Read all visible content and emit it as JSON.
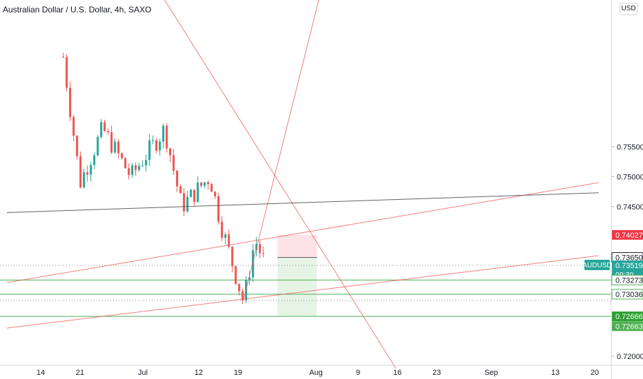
{
  "symbol_title": "Australian Dollar / U.S. Dollar, 4h, SAXO",
  "currency_button": "USD",
  "colors": {
    "up": "#26a69a",
    "down": "#ef5350",
    "trend_red": "#ef5350",
    "support_green": "#4caf50",
    "dark_line": "#505050",
    "axis_text": "#131722"
  },
  "chart_data": {
    "type": "candlestick",
    "title": "Australian Dollar / U.S. Dollar, 4h, SAXO",
    "symbol": "AUDUSD",
    "ylim": [
      0.7185,
      0.7795
    ],
    "y_ticks": [
      "0.75500",
      "0.75000",
      "0.74500",
      "0.72000"
    ],
    "x_ticks": [
      "14",
      "21",
      "Jul",
      "12",
      "19",
      "Aug",
      "9",
      "16",
      "23",
      "Sep",
      "13",
      "20"
    ],
    "price_labels": [
      {
        "label": "0.74027",
        "value": 0.74027,
        "style": "red"
      },
      {
        "label": "0.73650",
        "value": 0.7365,
        "style": "dark"
      },
      {
        "label": "AUDUSD",
        "value": 0.73519,
        "style": "teal-name"
      },
      {
        "label": "0.73519",
        "value": 0.73519,
        "style": "teal"
      },
      {
        "label": "09:30",
        "value": 0.73519,
        "style": "teal-sub"
      },
      {
        "label": "0.73273",
        "value": 0.73273,
        "style": "green-outline"
      },
      {
        "label": "0.73036",
        "value": 0.73036,
        "style": "green-outline"
      },
      {
        "label": "0.72666",
        "value": 0.72666,
        "style": "green"
      },
      {
        "label": "0.72663",
        "value": 0.72663,
        "style": "green-light"
      }
    ],
    "horizontal_levels": [
      {
        "value": 0.73273,
        "type": "green"
      },
      {
        "value": 0.73036,
        "type": "green"
      },
      {
        "value": 0.72666,
        "type": "green"
      },
      {
        "value": 0.73519,
        "type": "dotted"
      },
      {
        "value": 0.7293,
        "type": "dotted"
      }
    ],
    "position": {
      "entry": 0.7365,
      "stop": 0.74027,
      "target": 0.72666,
      "start_date": "2021-07-26",
      "end_date": "2021-08-02"
    },
    "anchors": [
      {
        "date": "2021-06-18",
        "price": 0.77
      },
      {
        "date": "2021-06-21",
        "price": 0.749
      },
      {
        "date": "2021-06-25",
        "price": 0.758
      },
      {
        "date": "2021-06-30",
        "price": 0.75
      },
      {
        "date": "2021-07-06",
        "price": 0.758
      },
      {
        "date": "2021-07-09",
        "price": 0.745
      },
      {
        "date": "2021-07-14",
        "price": 0.75
      },
      {
        "date": "2021-07-16",
        "price": 0.742
      },
      {
        "date": "2021-07-20",
        "price": 0.729
      },
      {
        "date": "2021-07-22",
        "price": 0.7395
      },
      {
        "date": "2021-07-24",
        "price": 0.735
      }
    ],
    "trend_lines": [
      {
        "from": {
          "date": "2021-07-06",
          "price": 0.7795
        },
        "to": {
          "date": "2021-08-16",
          "price": 0.718
        },
        "type": "red"
      },
      {
        "from": {
          "date": "2021-07-20",
          "price": 0.7295
        },
        "to": {
          "date": "2021-08-03",
          "price": 0.782
        },
        "type": "red"
      },
      {
        "from": {
          "date": "2021-06-08",
          "price": 0.7323
        },
        "to": {
          "date": "2021-09-21",
          "price": 0.749
        },
        "type": "red"
      },
      {
        "from": {
          "date": "2021-06-08",
          "price": 0.7247
        },
        "to": {
          "date": "2021-09-21",
          "price": 0.7368
        },
        "type": "red"
      },
      {
        "from": {
          "date": "2021-06-08",
          "price": 0.744
        },
        "to": {
          "date": "2021-09-21",
          "price": 0.7473
        },
        "type": "dark"
      }
    ]
  }
}
